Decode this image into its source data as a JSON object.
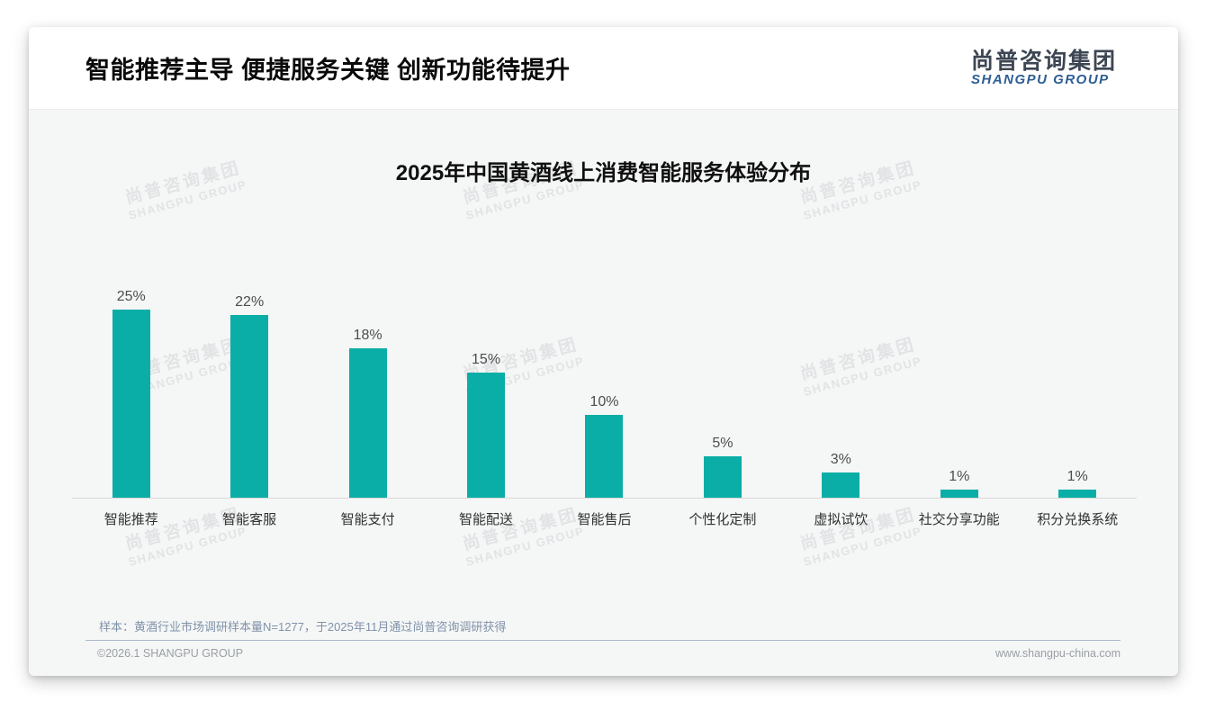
{
  "page": {
    "title": "智能推荐主导 便捷服务关键 创新功能待提升",
    "source_note": "样本：黄酒行业市场调研样本量N=1277，于2025年11月通过尚普咨询调研获得",
    "footer_left": "©2026.1 SHANGPU GROUP",
    "footer_right": "www.shangpu-china.com"
  },
  "brand": {
    "logo_cn": "尚普咨询集团",
    "logo_en": "SHANGPU GROUP",
    "logo_cn_color": "#3d4653",
    "logo_en_color": "#2d5d93",
    "watermark_cn": "尚普咨询集团",
    "watermark_en": "SHANGPU GROUP"
  },
  "chart_data": {
    "type": "bar",
    "title": "2025年中国黄酒线上消费智能服务体验分布",
    "categories": [
      "智能推荐",
      "智能客服",
      "智能支付",
      "智能配送",
      "智能售后",
      "个性化定制",
      "虚拟试饮",
      "社交分享功能",
      "积分兑换系统"
    ],
    "values": [
      25,
      22,
      18,
      15,
      10,
      5,
      3,
      1,
      1
    ],
    "value_labels": [
      "25%",
      "22%",
      "18%",
      "15%",
      "10%",
      "5%",
      "3%",
      "1%",
      "1%"
    ],
    "unit": "%",
    "bar_color": "#0baea6",
    "xlabel": "",
    "ylabel": "",
    "ylim": [
      0,
      25
    ],
    "grid": false,
    "legend": null
  }
}
